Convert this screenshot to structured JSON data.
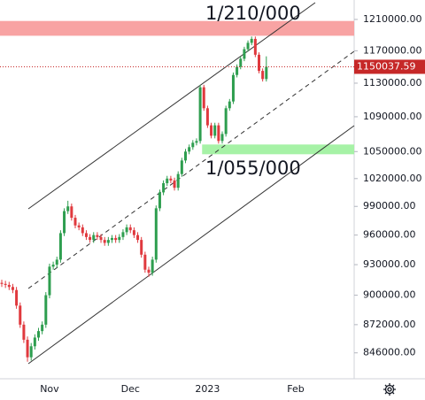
{
  "chart_data": {
    "type": "candlestick",
    "categories": [
      null,
      null,
      null,
      null,
      null,
      null,
      null,
      null,
      null,
      null,
      null,
      null,
      null,
      "Nov",
      null,
      null,
      null,
      null,
      null,
      null,
      null,
      null,
      null,
      null,
      null,
      null,
      null,
      null,
      null,
      null,
      null,
      null,
      null,
      null,
      null,
      "Dec",
      null,
      null,
      null,
      null,
      null,
      null,
      null,
      null,
      null,
      null,
      null,
      null,
      null,
      null,
      null,
      null,
      null,
      null,
      null,
      null,
      "2023",
      null,
      null,
      null,
      null,
      null,
      null,
      null,
      null,
      null,
      null,
      null,
      null,
      null,
      null,
      null,
      null,
      null,
      null,
      null,
      null,
      null,
      null,
      null,
      "Feb",
      null,
      null,
      null,
      null,
      null,
      null,
      null,
      null,
      null,
      null,
      null,
      null,
      null,
      null,
      null
    ],
    "open": [
      912000,
      911000,
      910000,
      908000,
      905000,
      890000,
      872000,
      858000,
      842000,
      852000,
      860000,
      866000,
      872000,
      900000,
      928000,
      930000,
      935000,
      962000,
      985000,
      990000,
      978000,
      970000,
      968000,
      962000,
      958000,
      955000,
      960000,
      958000,
      955000,
      952000,
      955000,
      957000,
      955000,
      958000,
      963000,
      968000,
      965000,
      960000,
      955000,
      940000,
      925000,
      922000,
      935000,
      988000,
      1005000,
      1015000,
      1020000,
      1018000,
      1010000,
      1025000,
      1040000,
      1050000,
      1055000,
      1060000,
      1062000,
      1125000,
      1100000,
      1080000,
      1068000,
      1080000,
      1062000,
      1070000,
      1100000,
      1108000,
      1140000,
      1150000,
      1160000,
      1172000,
      1180000,
      1185000,
      1165000,
      1145000,
      1135000,
      null,
      null,
      null,
      null,
      null,
      null,
      null,
      null,
      null,
      null,
      null,
      null,
      null,
      null,
      null,
      null,
      null,
      null,
      null,
      null,
      null,
      null,
      null
    ],
    "high": [
      915000,
      914000,
      913000,
      911000,
      908000,
      893000,
      875000,
      861000,
      855000,
      863000,
      869000,
      875000,
      903000,
      931000,
      933000,
      938000,
      965000,
      988000,
      996000,
      993000,
      981000,
      973000,
      971000,
      965000,
      961000,
      963000,
      963000,
      961000,
      958000,
      958000,
      960000,
      960000,
      961000,
      966000,
      971000,
      971000,
      968000,
      963000,
      958000,
      943000,
      928000,
      938000,
      991000,
      1008000,
      1018000,
      1023000,
      1023000,
      1021000,
      1028000,
      1043000,
      1053000,
      1058000,
      1063000,
      1065000,
      1128000,
      1128000,
      1103000,
      1083000,
      1083000,
      1083000,
      1073000,
      1103000,
      1111000,
      1143000,
      1153000,
      1163000,
      1175000,
      1183000,
      1188000,
      1188000,
      1168000,
      1148000,
      1163000,
      null,
      null,
      null,
      null,
      null,
      null,
      null,
      null,
      null,
      null,
      null,
      null,
      null,
      null,
      null,
      null,
      null,
      null,
      null,
      null,
      null,
      null,
      null
    ],
    "low": [
      908000,
      907000,
      905000,
      902000,
      887000,
      869000,
      855000,
      838000,
      839000,
      849000,
      857000,
      863000,
      869000,
      897000,
      925000,
      927000,
      932000,
      959000,
      982000,
      975000,
      967000,
      965000,
      959000,
      955000,
      952000,
      952000,
      955000,
      952000,
      949000,
      949000,
      952000,
      952000,
      952000,
      955000,
      960000,
      962000,
      957000,
      952000,
      937000,
      922000,
      918000,
      919000,
      932000,
      985000,
      1002000,
      1012000,
      1015000,
      1007000,
      1007000,
      1022000,
      1037000,
      1047000,
      1052000,
      1057000,
      1059000,
      1097000,
      1077000,
      1065000,
      1065000,
      1059000,
      1059000,
      1067000,
      1097000,
      1105000,
      1137000,
      1147000,
      1157000,
      1169000,
      1177000,
      1162000,
      1142000,
      1132000,
      1132000,
      null,
      null,
      null,
      null,
      null,
      null,
      null,
      null,
      null,
      null,
      null,
      null,
      null,
      null,
      null,
      null,
      null,
      null,
      null,
      null,
      null,
      null,
      null
    ],
    "close": [
      911000,
      910000,
      908000,
      905000,
      890000,
      872000,
      858000,
      842000,
      852000,
      860000,
      866000,
      872000,
      900000,
      928000,
      930000,
      935000,
      962000,
      985000,
      990000,
      978000,
      970000,
      968000,
      962000,
      958000,
      955000,
      960000,
      958000,
      955000,
      952000,
      955000,
      957000,
      955000,
      958000,
      963000,
      968000,
      965000,
      960000,
      955000,
      940000,
      925000,
      922000,
      935000,
      988000,
      1005000,
      1015000,
      1020000,
      1018000,
      1010000,
      1025000,
      1040000,
      1050000,
      1055000,
      1060000,
      1062000,
      1125000,
      1100000,
      1080000,
      1068000,
      1080000,
      1062000,
      1070000,
      1100000,
      1108000,
      1140000,
      1150000,
      1160000,
      1172000,
      1180000,
      1185000,
      1165000,
      1145000,
      1135000,
      1150037.59,
      null,
      null,
      null,
      null,
      null,
      null,
      null,
      null,
      null,
      null,
      null,
      null,
      null,
      null,
      null,
      null,
      null,
      null,
      null,
      null,
      null,
      null,
      null
    ],
    "up_color": "#2e9e4f",
    "down_color": "#e0393e",
    "last_price_color": "#c62828",
    "log_scale": true,
    "ylim": [
      822800,
      1235500
    ],
    "yticks": [
      {
        "value": 1210000,
        "label": "1210000.00"
      },
      {
        "value": 1170000,
        "label": "1170000.00"
      },
      {
        "value": 1130000,
        "label": "1130000.00"
      },
      {
        "value": 1090000,
        "label": "1090000.00"
      },
      {
        "value": 1050000,
        "label": "1050000.00"
      },
      {
        "value": 1020000,
        "label": "1020000.00"
      },
      {
        "value": 990000,
        "label": "990000.00"
      },
      {
        "value": 960000,
        "label": "960000.00"
      },
      {
        "value": 930000,
        "label": "930000.00"
      },
      {
        "value": 900000,
        "label": "900000.00"
      },
      {
        "value": 872000,
        "label": "872000.00"
      },
      {
        "value": 846000,
        "label": "846000.00"
      }
    ],
    "zones": [
      {
        "start": 0,
        "from": 1189000,
        "to": 1208000,
        "color": "#f8a3a3"
      },
      {
        "start": 55,
        "from": 1047000,
        "to": 1058000,
        "color": "#a6f2a6"
      }
    ],
    "annotations": [
      "1/210/000",
      "1/055/000"
    ]
  }
}
